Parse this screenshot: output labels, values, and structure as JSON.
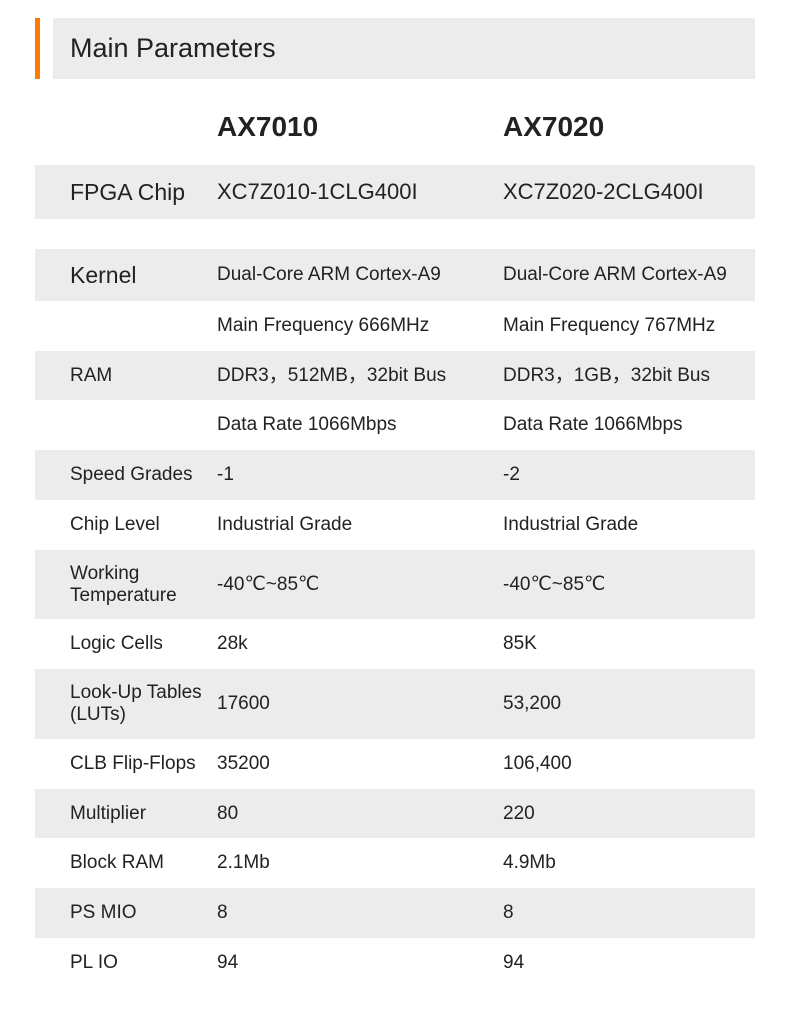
{
  "title": "Main Parameters",
  "colors": {
    "accent": "#ff7a00",
    "shaded_bg": "#ececec",
    "text": "#222222",
    "background": "#ffffff"
  },
  "columns": {
    "col1_header": "AX7010",
    "col2_header": "AX7020"
  },
  "rows": [
    {
      "label": "FPGA Chip",
      "col1": "XC7Z010-1CLG400I",
      "col2": "XC7Z020-2CLG400I",
      "shaded": true,
      "big": true,
      "gap_after": true
    },
    {
      "label": "Kernel",
      "col1": "Dual-Core ARM Cortex-A9",
      "col2": "Dual-Core ARM Cortex-A9",
      "shaded": true,
      "big_label": true
    },
    {
      "label": "",
      "col1": "Main Frequency 666MHz",
      "col2": "Main Frequency 767MHz",
      "shaded": false
    },
    {
      "label": "RAM",
      "col1": "DDR3，512MB，32bit Bus",
      "col2": "DDR3，1GB，32bit Bus",
      "shaded": true
    },
    {
      "label": "",
      "col1": "Data Rate 1066Mbps",
      "col2": "Data Rate 1066Mbps",
      "shaded": false
    },
    {
      "label": "Speed Grades",
      "col1": "-1",
      "col2": "-2",
      "shaded": true
    },
    {
      "label": "Chip Level",
      "col1": "Industrial Grade",
      "col2": "Industrial Grade",
      "shaded": false
    },
    {
      "label": "Working Temperature",
      "col1": "-40℃~85℃",
      "col2": "-40℃~85℃",
      "shaded": true
    },
    {
      "label": "Logic Cells",
      "col1": "28k",
      "col2": "85K",
      "shaded": false
    },
    {
      "label": "Look-Up Tables  (LUTs)",
      "col1": "17600",
      "col2": "53,200",
      "shaded": true
    },
    {
      "label": "CLB Flip-Flops",
      "col1": "35200",
      "col2": "106,400",
      "shaded": false
    },
    {
      "label": "Multiplier",
      "col1": "80",
      "col2": "220",
      "shaded": true
    },
    {
      "label": "Block RAM",
      "col1": "2.1Mb",
      "col2": "4.9Mb",
      "shaded": false
    },
    {
      "label": "PS MIO",
      "col1": "8",
      "col2": "8",
      "shaded": true
    },
    {
      "label": "PL IO",
      "col1": "94",
      "col2": "94",
      "shaded": false
    }
  ]
}
